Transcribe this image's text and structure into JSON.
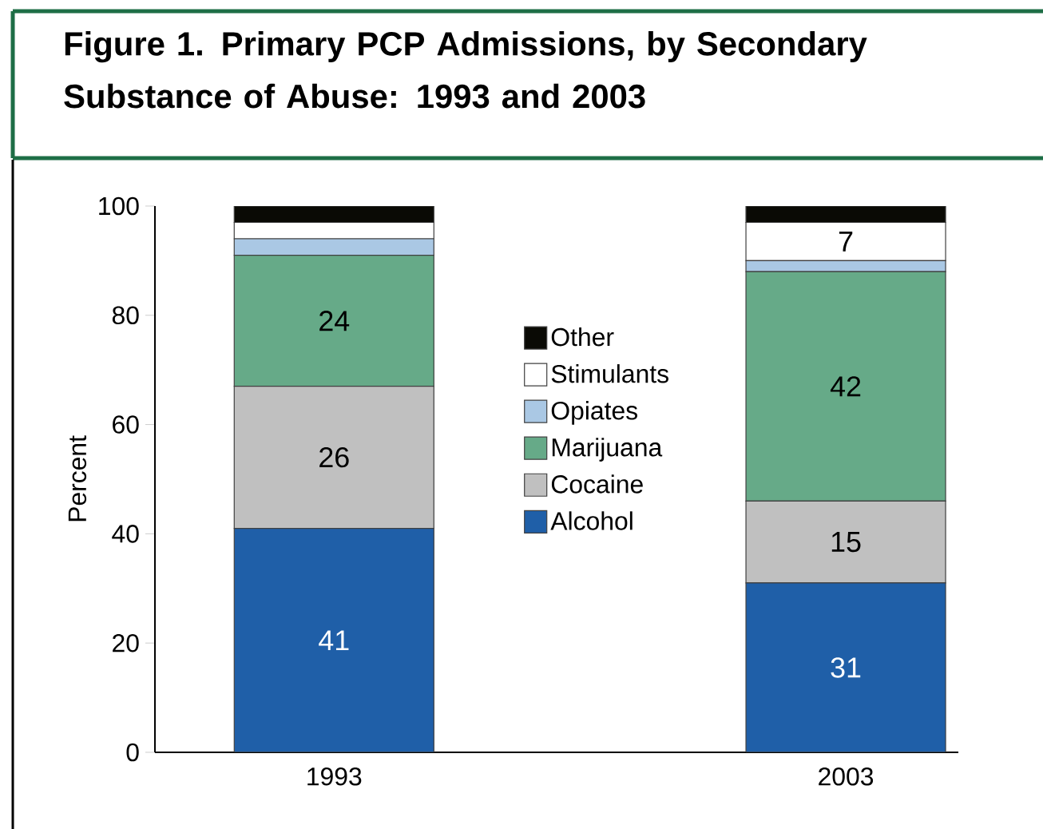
{
  "chart_data": {
    "type": "bar",
    "stacked": true,
    "title": "Figure 1. Primary PCP Admissions, by Secondary Substance of Abuse: 1993 and 2003",
    "ylabel": "Percent",
    "categories": [
      "1993",
      "2003"
    ],
    "series": [
      {
        "name": "Alcohol",
        "color": "#1f5fa8",
        "values": [
          41,
          31
        ],
        "value_labels": [
          "41",
          "31"
        ]
      },
      {
        "name": "Cocaine",
        "color": "#c0c0c0",
        "values": [
          26,
          15
        ],
        "value_labels": [
          "26",
          "15"
        ]
      },
      {
        "name": "Marijuana",
        "color": "#66aa88",
        "values": [
          24,
          42
        ],
        "value_labels": [
          "24",
          "42"
        ]
      },
      {
        "name": "Opiates",
        "color": "#aac8e4",
        "values": [
          3,
          2
        ],
        "value_labels": [
          null,
          null
        ]
      },
      {
        "name": "Stimulants",
        "color": "#ffffff",
        "values": [
          3,
          7
        ],
        "value_labels": [
          null,
          "7"
        ]
      },
      {
        "name": "Other",
        "color": "#0a0a05",
        "values": [
          3,
          3
        ],
        "value_labels": [
          null,
          null
        ]
      }
    ],
    "ylim": [
      0,
      100
    ],
    "yticks": [
      0,
      20,
      40,
      60,
      80,
      100
    ],
    "grid": false,
    "legend": "center"
  }
}
